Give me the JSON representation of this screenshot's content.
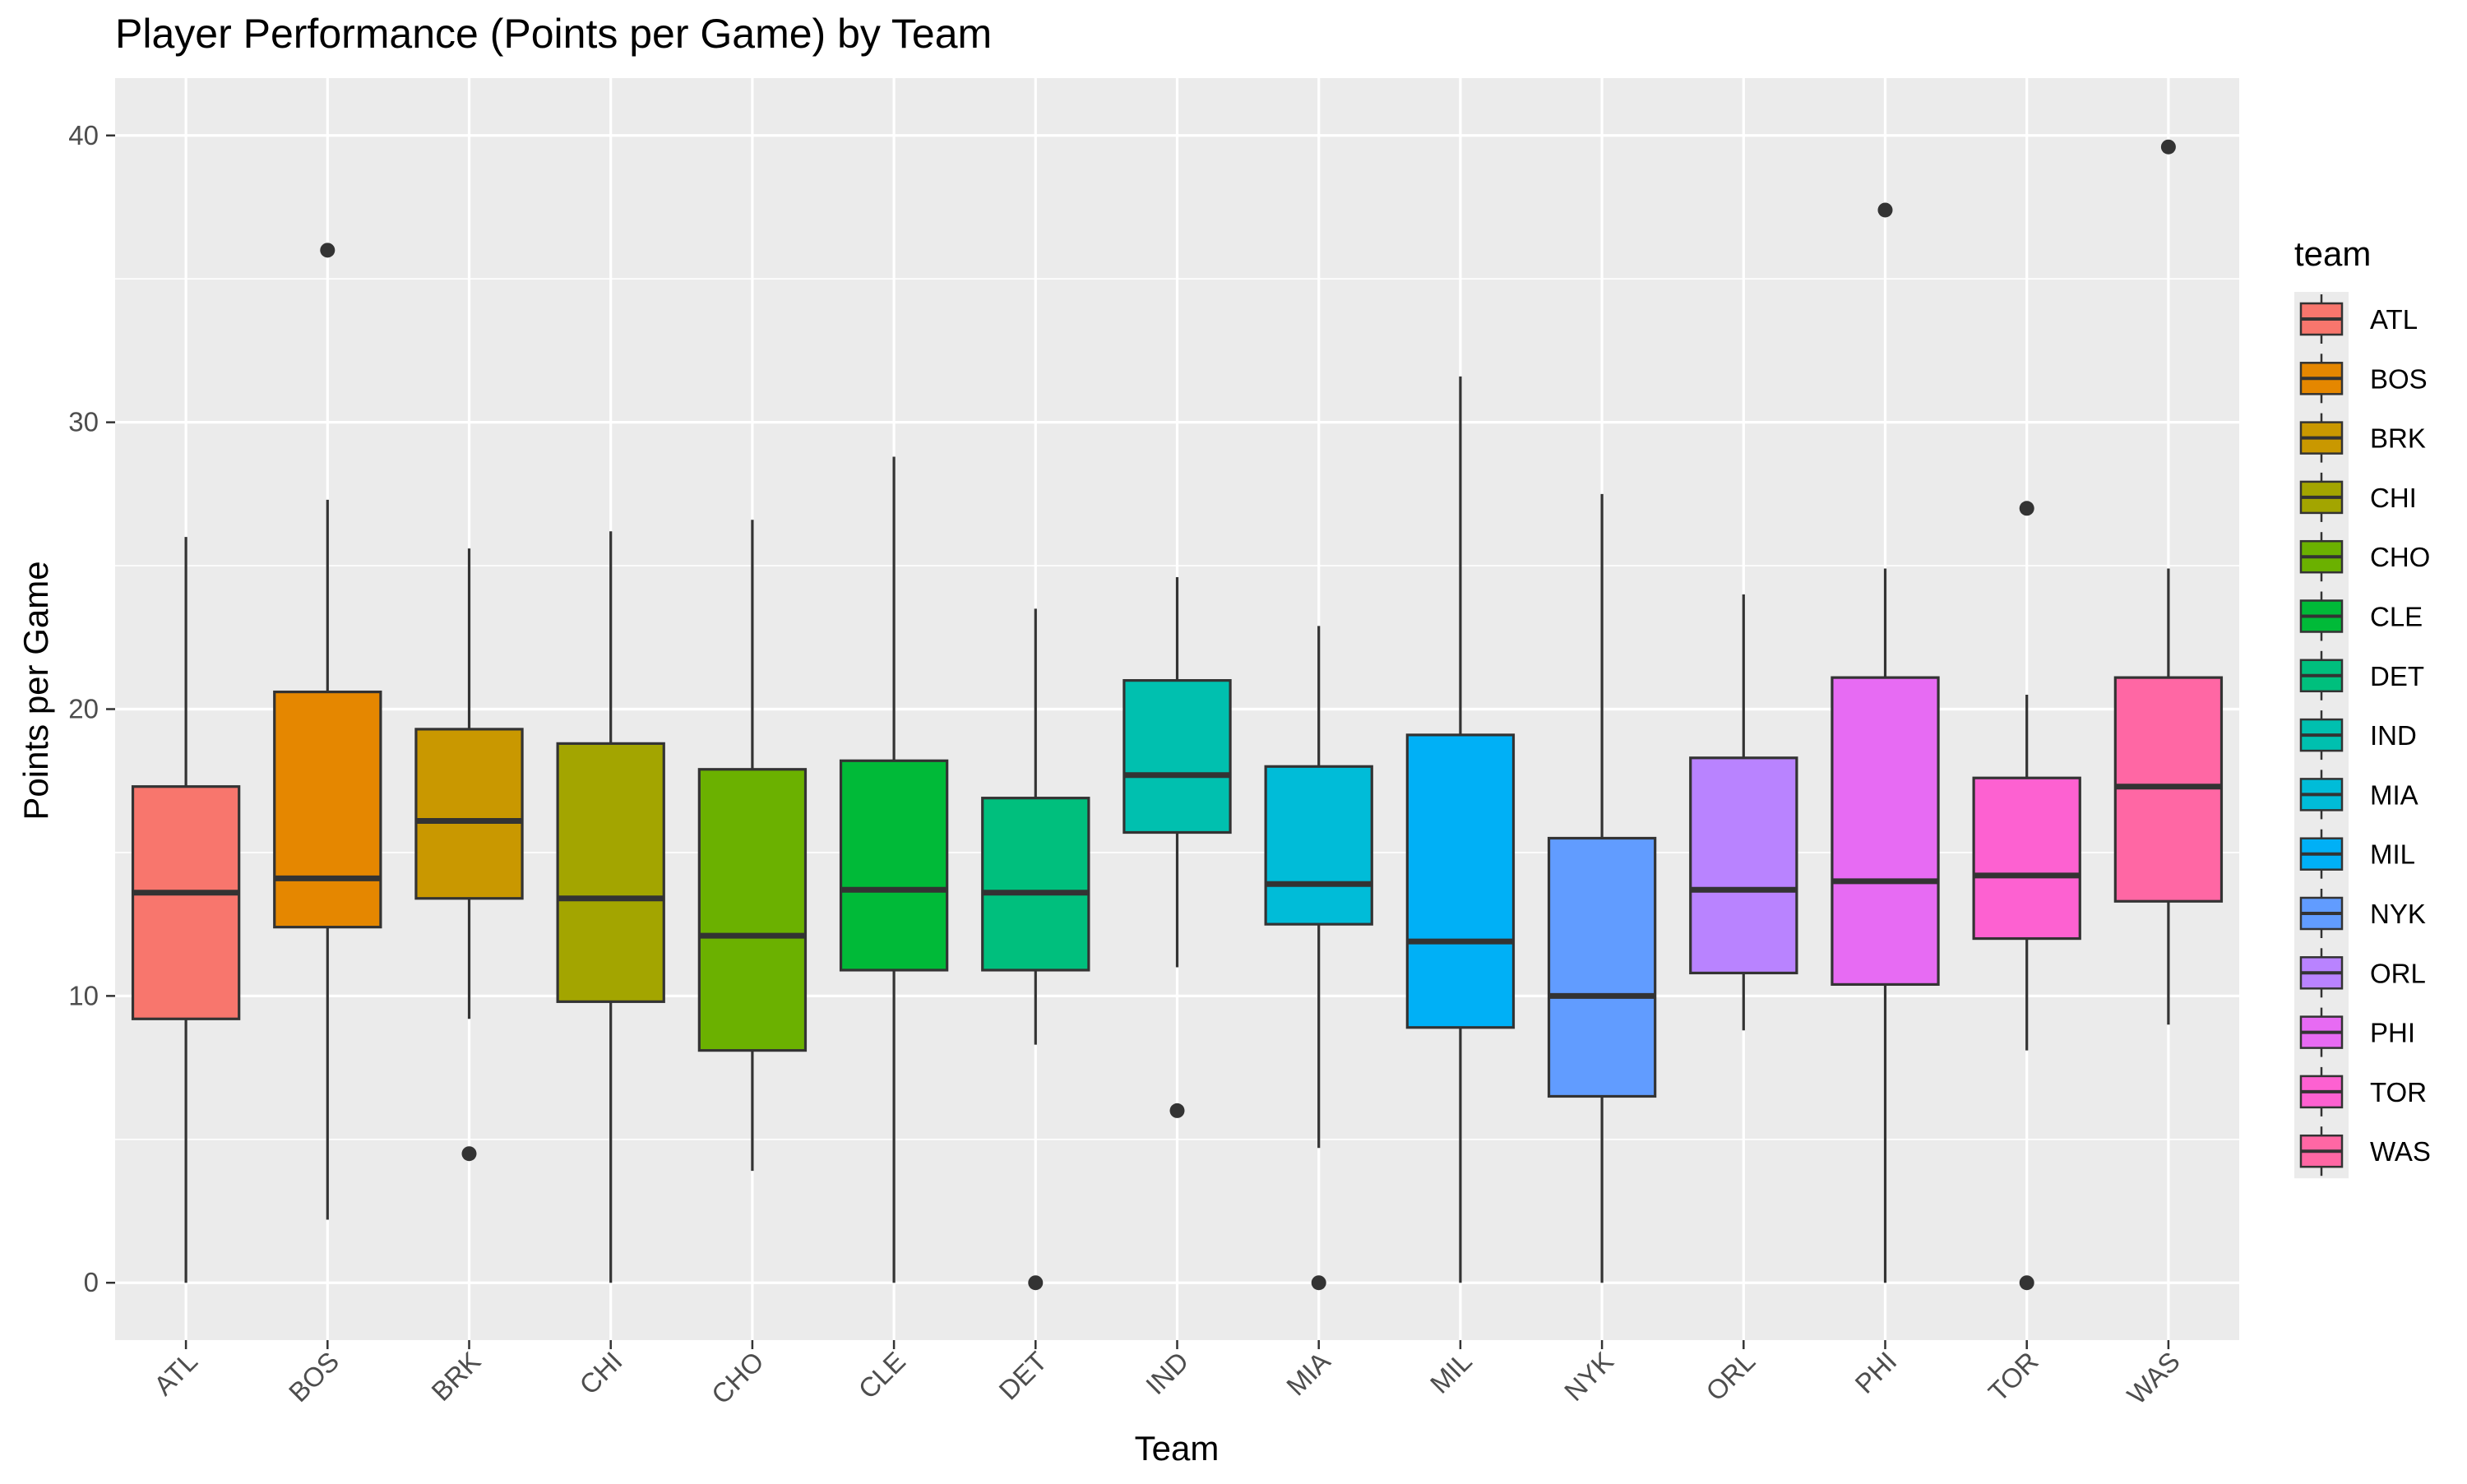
{
  "chart_data": {
    "type": "boxplot",
    "title": "Player Performance (Points per Game) by Team",
    "xlabel": "Team",
    "ylabel": "Points per Game",
    "ylim": [
      -2,
      42
    ],
    "yticks": [
      0,
      10,
      20,
      30,
      40
    ],
    "grid": true,
    "legend": {
      "title": "team",
      "position": "right"
    },
    "categories": [
      "ATL",
      "BOS",
      "BRK",
      "CHI",
      "CHO",
      "CLE",
      "DET",
      "IND",
      "MIA",
      "MIL",
      "NYK",
      "ORL",
      "PHI",
      "TOR",
      "WAS"
    ],
    "colors": [
      "#F8766D",
      "#E58700",
      "#C99800",
      "#A3A500",
      "#6BB100",
      "#00BA38",
      "#00BF7D",
      "#00C0AF",
      "#00BCD8",
      "#00B0F6",
      "#619CFF",
      "#B983FF",
      "#E76BF3",
      "#FD61D1",
      "#FF67A4"
    ],
    "boxes": [
      {
        "team": "ATL",
        "min": 0.0,
        "q1": 9.2,
        "median": 13.6,
        "q3": 17.3,
        "max": 26.0,
        "outliers": []
      },
      {
        "team": "BOS",
        "min": 2.2,
        "q1": 12.4,
        "median": 14.1,
        "q3": 20.6,
        "max": 27.3,
        "outliers": [
          36.0
        ]
      },
      {
        "team": "BRK",
        "min": 9.2,
        "q1": 13.4,
        "median": 16.1,
        "q3": 19.3,
        "max": 25.6,
        "outliers": [
          4.5
        ]
      },
      {
        "team": "CHI",
        "min": 0.0,
        "q1": 9.8,
        "median": 13.4,
        "q3": 18.8,
        "max": 26.2,
        "outliers": []
      },
      {
        "team": "CHO",
        "min": 3.9,
        "q1": 8.1,
        "median": 12.1,
        "q3": 17.9,
        "max": 26.6,
        "outliers": []
      },
      {
        "team": "CLE",
        "min": 0.0,
        "q1": 10.9,
        "median": 13.7,
        "q3": 18.2,
        "max": 28.8,
        "outliers": []
      },
      {
        "team": "DET",
        "min": 8.3,
        "q1": 10.9,
        "median": 13.6,
        "q3": 16.9,
        "max": 23.5,
        "outliers": [
          0.0
        ]
      },
      {
        "team": "IND",
        "min": 11.0,
        "q1": 15.7,
        "median": 17.7,
        "q3": 21.0,
        "max": 24.6,
        "outliers": [
          6.0
        ]
      },
      {
        "team": "MIA",
        "min": 4.7,
        "q1": 12.5,
        "median": 13.9,
        "q3": 18.0,
        "max": 22.9,
        "outliers": [
          0.0
        ]
      },
      {
        "team": "MIL",
        "min": 0.0,
        "q1": 8.9,
        "median": 11.9,
        "q3": 19.1,
        "max": 31.6,
        "outliers": []
      },
      {
        "team": "NYK",
        "min": 0.0,
        "q1": 6.5,
        "median": 10.0,
        "q3": 15.5,
        "max": 27.5,
        "outliers": []
      },
      {
        "team": "ORL",
        "min": 8.8,
        "q1": 10.8,
        "median": 13.7,
        "q3": 18.3,
        "max": 24.0,
        "outliers": []
      },
      {
        "team": "PHI",
        "min": 0.0,
        "q1": 10.4,
        "median": 14.0,
        "q3": 21.1,
        "max": 24.9,
        "outliers": [
          37.4
        ]
      },
      {
        "team": "TOR",
        "min": 8.1,
        "q1": 12.0,
        "median": 14.2,
        "q3": 17.6,
        "max": 20.5,
        "outliers": [
          27.0,
          0.0
        ]
      },
      {
        "team": "WAS",
        "min": 9.0,
        "q1": 13.3,
        "median": 17.3,
        "q3": 21.1,
        "max": 24.9,
        "outliers": [
          39.6
        ]
      }
    ]
  }
}
